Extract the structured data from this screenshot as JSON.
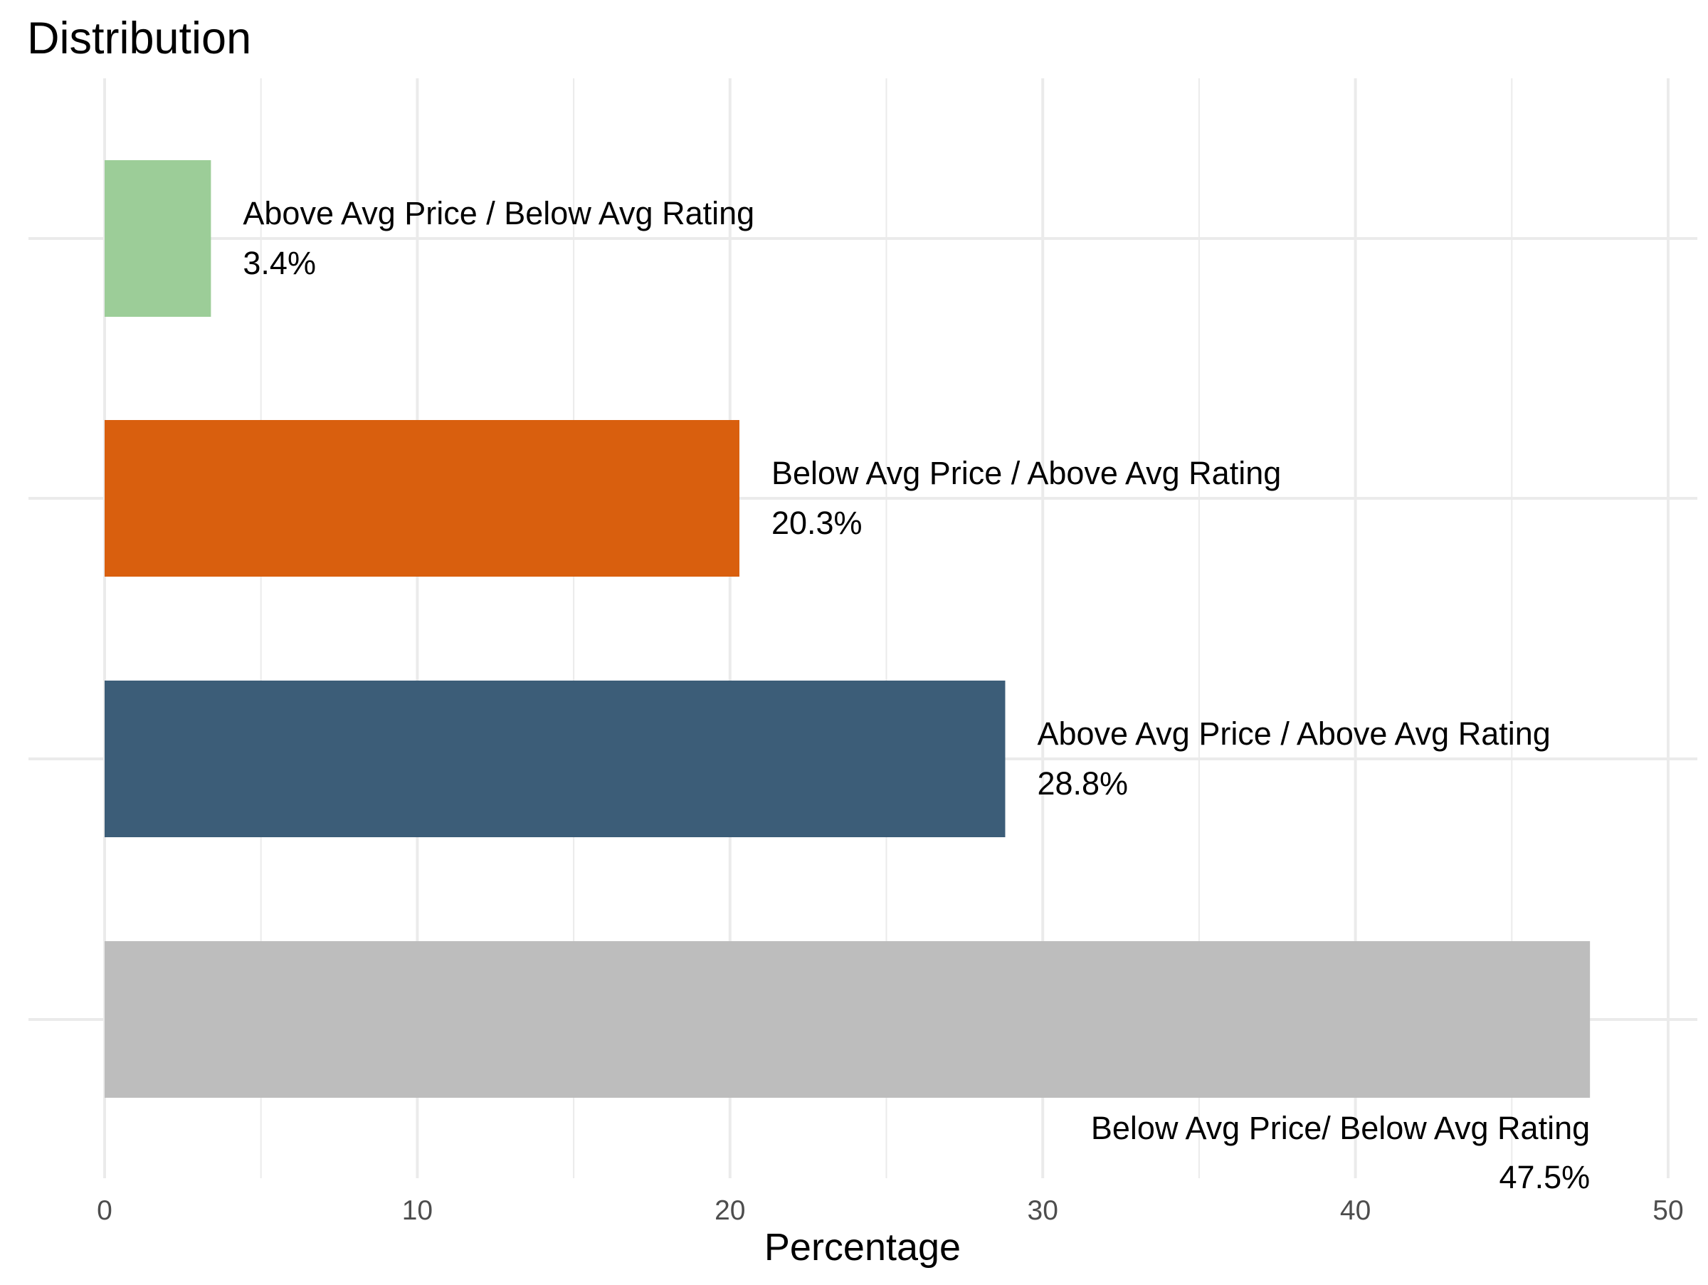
{
  "chart_data": {
    "type": "bar",
    "orientation": "horizontal",
    "title": "Distribution",
    "xlabel": "Percentage",
    "ylabel": "",
    "xlim": [
      0,
      50
    ],
    "x_ticks": [
      0,
      10,
      20,
      30,
      40,
      50
    ],
    "grid": true,
    "legend": "none",
    "categories": [
      "Above Avg Price / Below Avg Rating",
      "Below Avg Price / Above Avg Rating",
      "Above Avg Price / Above Avg Rating",
      "Below Avg Price/ Below Avg Rating"
    ],
    "values": [
      3.4,
      20.3,
      28.8,
      47.5
    ],
    "value_labels": [
      "3.4%",
      "20.3%",
      "28.8%",
      "47.5%"
    ],
    "colors": [
      "#9ccd98",
      "#d95f0e",
      "#3c5d78",
      "#bdbdbd"
    ]
  }
}
